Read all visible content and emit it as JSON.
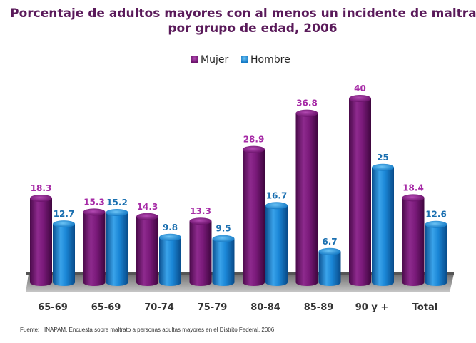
{
  "chart_data": {
    "type": "bar",
    "title_line1": "Porcentaje de adultos mayores con al menos un incidente de maltrato,",
    "title_line2": "por grupo de edad, 2006",
    "categories": [
      "65-69",
      "65-69",
      "70-74",
      "75-79",
      "80-84",
      "85-89",
      "90 y +",
      "Total"
    ],
    "series": [
      {
        "name": "Mujer",
        "values": [
          18.3,
          15.3,
          14.3,
          13.3,
          28.9,
          36.8,
          40,
          18.4
        ],
        "labels": [
          "18.3",
          "15.3",
          "14.3",
          "13.3",
          "28.9",
          "36.8",
          "40",
          "18.4"
        ],
        "color": "#7b1a7b",
        "label_color": "#a62aa6"
      },
      {
        "name": "Hombre",
        "values": [
          12.7,
          15.2,
          9.8,
          9.5,
          16.7,
          6.7,
          25,
          12.6
        ],
        "labels": [
          "12.7",
          "15.2",
          "9.8",
          "9.5",
          "16.7",
          "6.7",
          "25",
          "12.6"
        ],
        "color": "#1a7fcf",
        "label_color": "#1a6fb0"
      }
    ],
    "ylim": [
      0,
      45
    ],
    "legend_position": "top",
    "grid": false
  },
  "source_label": "Fuente:",
  "source_text": "INAPAM. Encuesta sobre maltrato a personas adultas mayores en el Distrito Federal, 2006."
}
